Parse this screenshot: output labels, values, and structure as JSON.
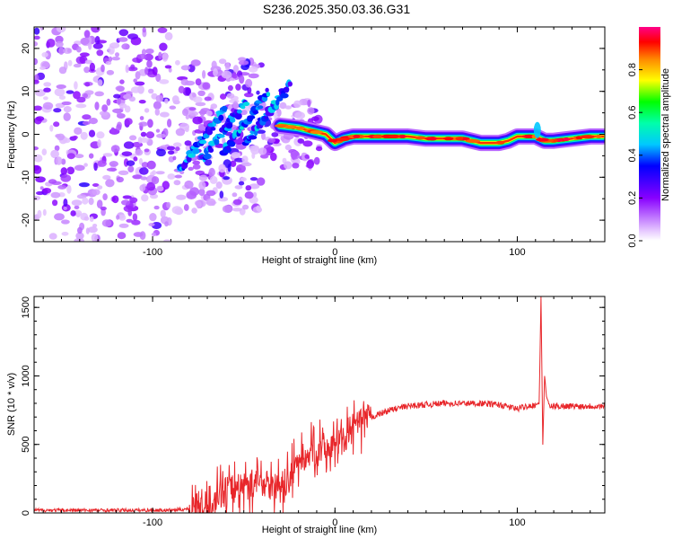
{
  "chart_data": [
    {
      "type": "heatmap",
      "title": "S236.2025.350.03.36.G31",
      "xlabel": "Height of straight line (km)",
      "ylabel": "Frequency (Hz)",
      "xlim": [
        -165,
        148
      ],
      "ylim": [
        -25,
        25
      ],
      "x_ticks": [
        -100,
        0,
        100
      ],
      "y_ticks": [
        -20,
        -10,
        0,
        10,
        20
      ],
      "colorbar": {
        "label": "Normalized spectral amplitude",
        "range": [
          0,
          1
        ],
        "ticks": [
          "0.0",
          "0.2",
          "0.4",
          "0.6",
          "0.8"
        ],
        "tick_values": [
          0,
          0.2,
          0.4,
          0.6,
          0.8
        ]
      },
      "ridge": {
        "x": [
          -30,
          -20,
          -10,
          -5,
          0,
          5,
          10,
          20,
          30,
          40,
          50,
          60,
          70,
          75,
          80,
          85,
          90,
          95,
          100,
          105,
          110,
          115,
          120,
          130,
          140,
          147
        ],
        "y": [
          2,
          1.5,
          0.5,
          0,
          -2,
          -1,
          -0.5,
          -0.5,
          -0.5,
          -0.5,
          -1,
          -1,
          -1,
          -1.5,
          -2,
          -2,
          -2,
          -1.5,
          -0.5,
          -0.5,
          -0.5,
          -1.5,
          -1.5,
          -1,
          -0.5,
          -0.5
        ]
      }
    },
    {
      "type": "line",
      "xlabel": "Height of straight line (km)",
      "ylabel": "SNR (10 * v/v)",
      "xlim": [
        -165,
        148
      ],
      "ylim": [
        0,
        1580
      ],
      "x_ticks": [
        -100,
        0,
        100
      ],
      "y_ticks": [
        0,
        500,
        1000,
        1500
      ],
      "series": [
        {
          "name": "SNR",
          "color": "#e8262a",
          "x": [
            -165,
            -140,
            -120,
            -100,
            -90,
            -80,
            -70,
            -60,
            -50,
            -40,
            -30,
            -25,
            -20,
            -10,
            0,
            10,
            20,
            30,
            40,
            50,
            60,
            70,
            80,
            90,
            100,
            105,
            110,
            112,
            113,
            114,
            115,
            116,
            118,
            120,
            130,
            140,
            148
          ],
          "y": [
            20,
            20,
            20,
            20,
            20,
            30,
            80,
            160,
            200,
            230,
            180,
            250,
            380,
            460,
            500,
            620,
            700,
            750,
            780,
            790,
            800,
            800,
            800,
            790,
            760,
            780,
            790,
            800,
            1580,
            500,
            1000,
            850,
            770,
            780,
            780,
            780,
            780
          ]
        }
      ]
    }
  ]
}
